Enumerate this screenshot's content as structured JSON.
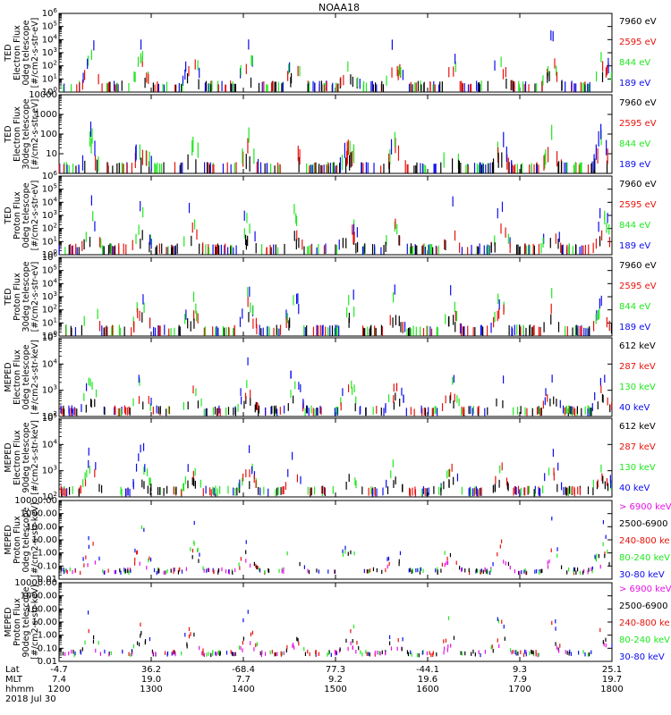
{
  "title": "NOAA18",
  "colors": {
    "black": "#000000",
    "red": "#e8120c",
    "green": "#1ee81e",
    "blue": "#0b0bef",
    "magenta": "#e712e6",
    "frame": "#000000"
  },
  "footer": {
    "rows": [
      {
        "label": "Lat",
        "values": [
          "-4.7",
          "36.2",
          "-68.4",
          "77.3",
          "-44.1",
          "9.3",
          "25.1"
        ]
      },
      {
        "label": "MLT",
        "values": [
          "7.4",
          "19.0",
          "7.7",
          "9.2",
          "19.6",
          "7.9",
          "19.7"
        ]
      },
      {
        "label": "hhmm",
        "values": [
          "1200",
          "1300",
          "1400",
          "1500",
          "1600",
          "1700",
          "1800"
        ]
      }
    ],
    "date": "2018 Jul 30"
  },
  "chart_data": [
    {
      "type": "scatter",
      "panel": "ted-electron-0deg",
      "ylabel": [
        "TED",
        "Electron Flux",
        "0deg telescope",
        "[#/cm2-s-str-eV]"
      ],
      "yscale": "log",
      "ylim": [
        1,
        1000000
      ],
      "y_ticks": [
        {
          "value": 1,
          "label": "10",
          "exp": "0"
        },
        {
          "value": 10,
          "label": "10",
          "exp": "1"
        },
        {
          "value": 100,
          "label": "10",
          "exp": "2"
        },
        {
          "value": 1000,
          "label": "10",
          "exp": "3"
        },
        {
          "value": 10000,
          "label": "10",
          "exp": "4"
        },
        {
          "value": 100000,
          "label": "10",
          "exp": "5"
        },
        {
          "value": 1000000,
          "label": "10",
          "exp": "6"
        }
      ],
      "xlim": [
        1200,
        1800
      ],
      "legend": [
        {
          "name": "7960 eV",
          "color": "black"
        },
        {
          "name": "2595 eV",
          "color": "red"
        },
        {
          "name": "844 eV",
          "color": "green"
        },
        {
          "name": "189 eV",
          "color": "blue"
        }
      ]
    },
    {
      "type": "scatter",
      "panel": "ted-electron-30deg",
      "ylabel": [
        "TED",
        "Electron Flux",
        "30deg telescope",
        "[#/cm2-s-str-eV]"
      ],
      "yscale": "log",
      "ylim": [
        1,
        10000
      ],
      "y_ticks": [
        {
          "value": 10,
          "label": "10"
        },
        {
          "value": 100,
          "label": "100"
        },
        {
          "value": 1000,
          "label": "1000"
        },
        {
          "value": 10000,
          "label": "10000"
        }
      ],
      "xlim": [
        1200,
        1800
      ],
      "legend": [
        {
          "name": "7960 eV",
          "color": "black"
        },
        {
          "name": "2595 eV",
          "color": "red"
        },
        {
          "name": "844 eV",
          "color": "green"
        },
        {
          "name": "189 eV",
          "color": "blue"
        }
      ]
    },
    {
      "type": "scatter",
      "panel": "ted-proton-0deg",
      "ylabel": [
        "TED",
        "Proton Flux",
        "0deg telescope",
        "[#/cm2-s-str-eV]"
      ],
      "yscale": "log",
      "ylim": [
        1,
        1000000
      ],
      "y_ticks": [
        {
          "value": 1,
          "label": "10",
          "exp": "0"
        },
        {
          "value": 10,
          "label": "10",
          "exp": "1"
        },
        {
          "value": 100,
          "label": "10",
          "exp": "2"
        },
        {
          "value": 1000,
          "label": "10",
          "exp": "3"
        },
        {
          "value": 10000,
          "label": "10",
          "exp": "4"
        },
        {
          "value": 100000,
          "label": "10",
          "exp": "5"
        },
        {
          "value": 1000000,
          "label": "10",
          "exp": "6"
        }
      ],
      "xlim": [
        1200,
        1800
      ],
      "legend": [
        {
          "name": "7960 eV",
          "color": "black"
        },
        {
          "name": "2595 eV",
          "color": "red"
        },
        {
          "name": "844 eV",
          "color": "green"
        },
        {
          "name": "189 eV",
          "color": "blue"
        }
      ]
    },
    {
      "type": "scatter",
      "panel": "ted-proton-30deg",
      "ylabel": [
        "TED",
        "Proton Flux",
        "30deg telescope",
        "[#/cm2-s-str-eV]"
      ],
      "yscale": "log",
      "ylim": [
        1,
        1000000
      ],
      "y_ticks": [
        {
          "value": 1,
          "label": "10",
          "exp": "0"
        },
        {
          "value": 10,
          "label": "10",
          "exp": "1"
        },
        {
          "value": 100,
          "label": "10",
          "exp": "2"
        },
        {
          "value": 1000,
          "label": "10",
          "exp": "3"
        },
        {
          "value": 10000,
          "label": "10",
          "exp": "4"
        },
        {
          "value": 100000,
          "label": "10",
          "exp": "5"
        },
        {
          "value": 1000000,
          "label": "10",
          "exp": "6"
        }
      ],
      "xlim": [
        1200,
        1800
      ],
      "legend": [
        {
          "name": "7960 eV",
          "color": "black"
        },
        {
          "name": "2595 eV",
          "color": "red"
        },
        {
          "name": "844 eV",
          "color": "green"
        },
        {
          "name": "189 eV",
          "color": "blue"
        }
      ]
    },
    {
      "type": "scatter",
      "panel": "meped-electron-0deg",
      "ylabel": [
        "MEPED",
        "Electron Flux",
        "0deg telescope",
        "[#/cm2-s-str-keV]"
      ],
      "yscale": "log",
      "ylim": [
        100,
        100000
      ],
      "y_ticks": [
        {
          "value": 100,
          "label": "10",
          "exp": "2"
        },
        {
          "value": 1000,
          "label": "10",
          "exp": "3"
        },
        {
          "value": 10000,
          "label": "10",
          "exp": "4"
        },
        {
          "value": 100000,
          "label": "10",
          "exp": "5"
        }
      ],
      "xlim": [
        1200,
        1800
      ],
      "legend": [
        {
          "name": "612 keV",
          "color": "black"
        },
        {
          "name": "287 keV",
          "color": "red"
        },
        {
          "name": "130 keV",
          "color": "green"
        },
        {
          "name": "40 keV",
          "color": "blue"
        }
      ]
    },
    {
      "type": "scatter",
      "panel": "meped-electron-90deg",
      "ylabel": [
        "MEPED",
        "Electron Flux",
        "90deg telescope",
        "[#/cm2-s-str-keV]"
      ],
      "yscale": "log",
      "ylim": [
        100,
        100000
      ],
      "y_ticks": [
        {
          "value": 100,
          "label": "10",
          "exp": "2"
        },
        {
          "value": 1000,
          "label": "10",
          "exp": "3"
        },
        {
          "value": 10000,
          "label": "10",
          "exp": "4"
        },
        {
          "value": 100000,
          "label": "10",
          "exp": "5"
        }
      ],
      "xlim": [
        1200,
        1800
      ],
      "legend": [
        {
          "name": "612 keV",
          "color": "black"
        },
        {
          "name": "287 keV",
          "color": "red"
        },
        {
          "name": "130 keV",
          "color": "green"
        },
        {
          "name": "40 keV",
          "color": "blue"
        }
      ]
    },
    {
      "type": "scatter",
      "panel": "meped-proton-0deg",
      "ylabel": [
        "MEPED",
        "Proton Flux",
        "0deg telescope",
        "[#/cm2-s-str-keV]"
      ],
      "yscale": "log",
      "ylim": [
        0.01,
        10000
      ],
      "y_ticks": [
        {
          "value": 0.01,
          "label": "0.01"
        },
        {
          "value": 0.1,
          "label": "0.10"
        },
        {
          "value": 1,
          "label": "1.00"
        },
        {
          "value": 10,
          "label": "10.00"
        },
        {
          "value": 100,
          "label": "100.00"
        },
        {
          "value": 1000,
          "label": "1000.00"
        },
        {
          "value": 10000,
          "label": "10000.00"
        }
      ],
      "xlim": [
        1200,
        1800
      ],
      "legend": [
        {
          "name": "> 6900 keV",
          "color": "magenta"
        },
        {
          "name": "2500-6900",
          "color": "black"
        },
        {
          "name": "240-800 ke",
          "color": "red"
        },
        {
          "name": "80-240 keV",
          "color": "green"
        },
        {
          "name": "30-80 keV",
          "color": "blue"
        }
      ]
    },
    {
      "type": "scatter",
      "panel": "meped-proton-90deg",
      "ylabel": [
        "MEPED",
        "Proton Flux",
        "90deg telescope",
        "[#/cm2-s-str-keV]"
      ],
      "yscale": "log",
      "ylim": [
        0.01,
        10000
      ],
      "y_ticks": [
        {
          "value": 0.01,
          "label": "0.01"
        },
        {
          "value": 0.1,
          "label": "0.10"
        },
        {
          "value": 1,
          "label": "1.00"
        },
        {
          "value": 10,
          "label": "10.00"
        },
        {
          "value": 100,
          "label": "100.00"
        },
        {
          "value": 1000,
          "label": "1000.00"
        },
        {
          "value": 10000,
          "label": "10000.00"
        }
      ],
      "xlim": [
        1200,
        1800
      ],
      "legend": [
        {
          "name": "> 6900 keV",
          "color": "magenta"
        },
        {
          "name": "2500-6900",
          "color": "black"
        },
        {
          "name": "240-800 ke",
          "color": "red"
        },
        {
          "name": "80-240 keV",
          "color": "green"
        },
        {
          "name": "30-80 keV",
          "color": "blue"
        }
      ]
    }
  ]
}
